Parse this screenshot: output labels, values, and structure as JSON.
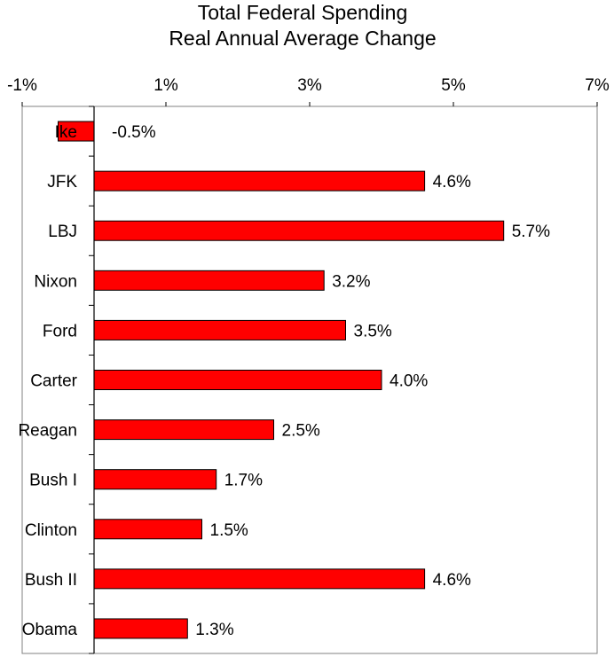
{
  "chart_data": {
    "type": "bar",
    "orientation": "horizontal",
    "title": "Total Federal Spending",
    "subtitle": "Real Annual Average Change",
    "xlabel": "",
    "ylabel": "",
    "xlim": [
      -1,
      7
    ],
    "ticks": [
      -1,
      1,
      3,
      5,
      7
    ],
    "tick_labels": [
      "-1%",
      "1%",
      "3%",
      "5%",
      "7%"
    ],
    "categories": [
      "Ike",
      "JFK",
      "LBJ",
      "Nixon",
      "Ford",
      "Carter",
      "Reagan",
      "Bush I",
      "Clinton",
      "Bush II",
      "Obama"
    ],
    "values": [
      -0.5,
      4.6,
      5.7,
      3.2,
      3.5,
      4.0,
      2.5,
      1.7,
      1.5,
      4.6,
      1.3
    ],
    "value_labels": [
      "-0.5%",
      "4.6%",
      "5.7%",
      "3.2%",
      "3.5%",
      "4.0%",
      "2.5%",
      "1.7%",
      "1.5%",
      "4.6%",
      "1.3%"
    ],
    "bar_color": "#ff0000",
    "grid": false,
    "legend": "none"
  }
}
